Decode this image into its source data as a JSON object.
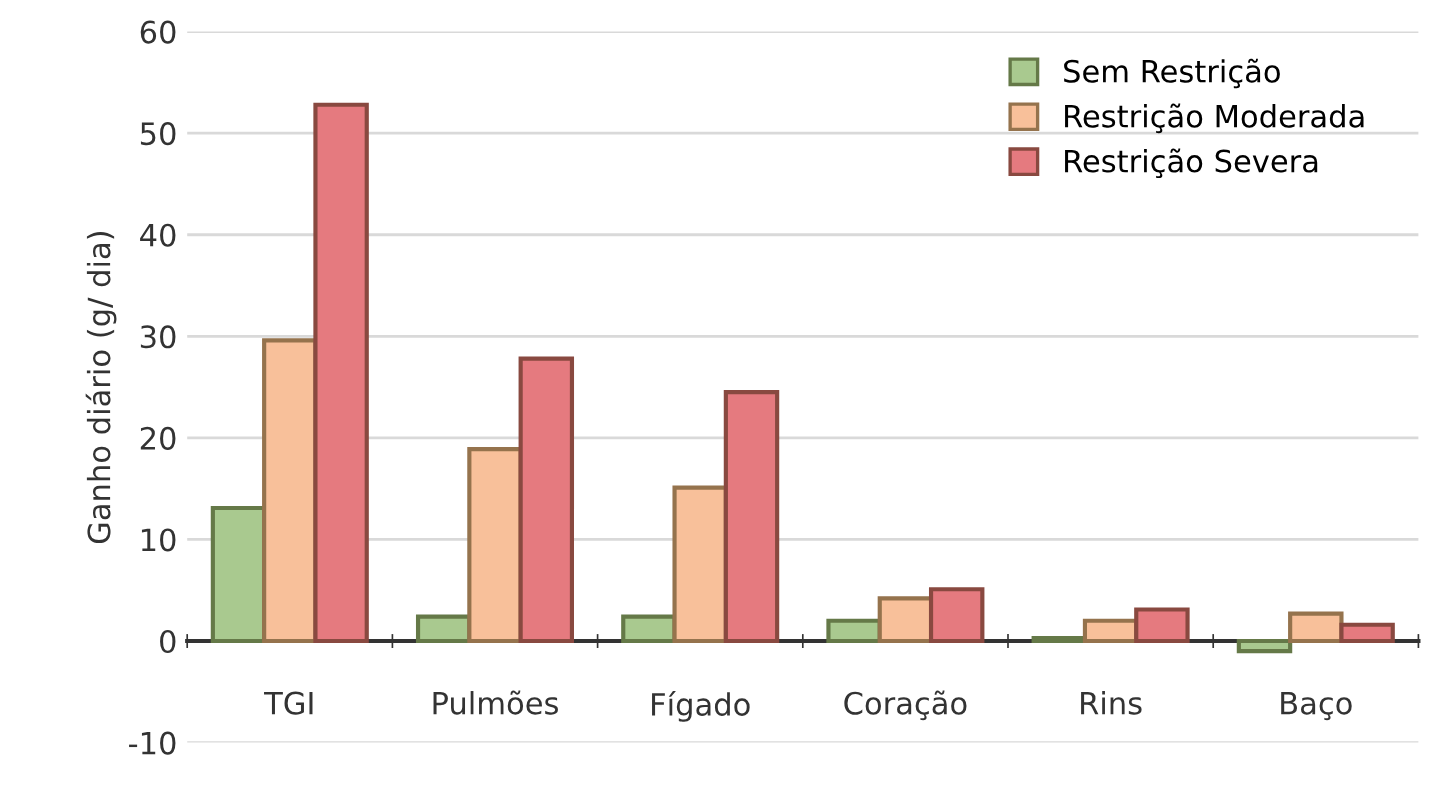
{
  "chart_data": {
    "type": "bar",
    "ylabel": "Ganho diário (g/ dia)",
    "categories": [
      "TGI",
      "Pulmões",
      "Fígado",
      "Coração",
      "Rins",
      "Baço"
    ],
    "series": [
      {
        "name": "Sem Restrição",
        "color": "#a9c98f",
        "values": [
          13.1,
          2.4,
          2.4,
          2.0,
          0.3,
          -1.0
        ]
      },
      {
        "name": "Restrição Moderada",
        "color": "#f8c09a",
        "values": [
          29.6,
          18.9,
          15.1,
          4.2,
          2.0,
          2.7
        ]
      },
      {
        "name": "Restrição Severa",
        "color": "#e57a7f",
        "values": [
          52.8,
          27.8,
          24.5,
          5.1,
          3.1,
          1.6
        ]
      }
    ],
    "ylim": [
      -10,
      60
    ],
    "yticks": [
      -10,
      0,
      10,
      20,
      30,
      40,
      50,
      60
    ],
    "grid": "y",
    "legend": "top right"
  }
}
